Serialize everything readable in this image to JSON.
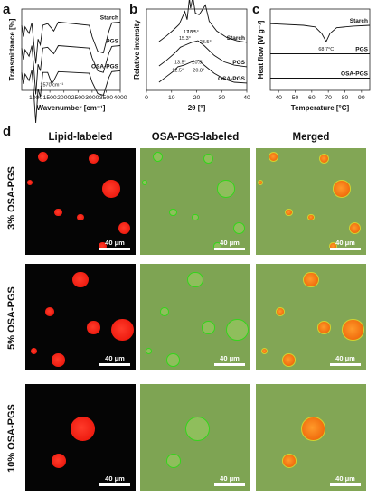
{
  "figure": {
    "panel_letters": {
      "a": "a",
      "b": "b",
      "c": "c",
      "d": "d"
    }
  },
  "chart_data": [
    {
      "panel": "a",
      "type": "line",
      "xlabel": "Wavenumber [cm⁻¹]",
      "ylabel": "Transmittance [%]",
      "xlim": [
        500,
        4000
      ],
      "xticks": [
        1000,
        1500,
        2000,
        2500,
        3000,
        3500,
        4000
      ],
      "annotations": [
        {
          "text": "1570 cm⁻¹",
          "x": 1570
        }
      ],
      "series": [
        {
          "name": "Starch",
          "offset": 0.78,
          "points": [
            [
              500,
              0.02
            ],
            [
              560,
              -0.12
            ],
            [
              620,
              0.0
            ],
            [
              760,
              -0.08
            ],
            [
              860,
              0.05
            ],
            [
              930,
              -0.2
            ],
            [
              1000,
              -0.45
            ],
            [
              1080,
              -0.15
            ],
            [
              1160,
              -0.22
            ],
            [
              1250,
              0.02
            ],
            [
              1420,
              0.04
            ],
            [
              1640,
              -0.05
            ],
            [
              1800,
              0.06
            ],
            [
              2900,
              0.02
            ],
            [
              3000,
              -0.12
            ],
            [
              3200,
              -0.3
            ],
            [
              3400,
              -0.32
            ],
            [
              3600,
              -0.05
            ],
            [
              3700,
              0.05
            ],
            [
              4000,
              0.06
            ]
          ]
        },
        {
          "name": "PGS",
          "offset": 0.5,
          "points": [
            [
              500,
              0.02
            ],
            [
              560,
              -0.12
            ],
            [
              620,
              0.0
            ],
            [
              760,
              -0.08
            ],
            [
              860,
              0.05
            ],
            [
              930,
              -0.22
            ],
            [
              1000,
              -0.55
            ],
            [
              1080,
              -0.18
            ],
            [
              1160,
              -0.26
            ],
            [
              1250,
              0.02
            ],
            [
              1420,
              0.03
            ],
            [
              1640,
              -0.05
            ],
            [
              1800,
              0.05
            ],
            [
              2900,
              0.02
            ],
            [
              3000,
              -0.1
            ],
            [
              3200,
              -0.26
            ],
            [
              3400,
              -0.28
            ],
            [
              3600,
              -0.04
            ],
            [
              3700,
              0.04
            ],
            [
              4000,
              0.05
            ]
          ]
        },
        {
          "name": "OSA-PGS",
          "offset": 0.2,
          "points": [
            [
              500,
              0.02
            ],
            [
              560,
              -0.12
            ],
            [
              620,
              0.0
            ],
            [
              760,
              -0.08
            ],
            [
              860,
              0.05
            ],
            [
              930,
              -0.24
            ],
            [
              1000,
              -0.6
            ],
            [
              1080,
              -0.18
            ],
            [
              1160,
              -0.28
            ],
            [
              1250,
              0.02
            ],
            [
              1420,
              0.02
            ],
            [
              1570,
              -0.12
            ],
            [
              1640,
              -0.08
            ],
            [
              1800,
              0.03
            ],
            [
              2900,
              0.01
            ],
            [
              3000,
              -0.1
            ],
            [
              3200,
              -0.24
            ],
            [
              3400,
              -0.26
            ],
            [
              3600,
              -0.04
            ],
            [
              3700,
              0.03
            ],
            [
              4000,
              0.04
            ]
          ]
        }
      ]
    },
    {
      "panel": "b",
      "type": "line",
      "xlabel": "2θ [°]",
      "ylabel": "Relative intensity",
      "xlim": [
        0,
        40
      ],
      "xticks": [
        0,
        10,
        20,
        30,
        40
      ],
      "series": [
        {
          "name": "Starch",
          "offset": 0.55,
          "points": [
            [
              5,
              0.05
            ],
            [
              8,
              0.12
            ],
            [
              11,
              0.2
            ],
            [
              13,
              0.26
            ],
            [
              15.3,
              0.42
            ],
            [
              16.2,
              0.32
            ],
            [
              17.1,
              0.58
            ],
            [
              17.6,
              0.46
            ],
            [
              18.5,
              0.6
            ],
            [
              19.5,
              0.4
            ],
            [
              21,
              0.38
            ],
            [
              23.5,
              0.5
            ],
            [
              25,
              0.3
            ],
            [
              28,
              0.18
            ],
            [
              32,
              0.1
            ],
            [
              36,
              0.06
            ],
            [
              40,
              0.04
            ]
          ]
        },
        {
          "name": "PGS",
          "offset": 0.25,
          "points": [
            [
              5,
              0.05
            ],
            [
              8,
              0.12
            ],
            [
              11,
              0.2
            ],
            [
              13.5,
              0.28
            ],
            [
              15,
              0.3
            ],
            [
              18,
              0.34
            ],
            [
              20.5,
              0.36
            ],
            [
              23,
              0.3
            ],
            [
              27,
              0.18
            ],
            [
              31,
              0.1
            ],
            [
              35,
              0.06
            ],
            [
              40,
              0.04
            ]
          ]
        },
        {
          "name": "OSA-PGS",
          "offset": 0.05,
          "points": [
            [
              5,
              0.05
            ],
            [
              8,
              0.12
            ],
            [
              11,
              0.19
            ],
            [
              12.5,
              0.24
            ],
            [
              15,
              0.26
            ],
            [
              18,
              0.3
            ],
            [
              20.8,
              0.32
            ],
            [
              23,
              0.26
            ],
            [
              27,
              0.16
            ],
            [
              31,
              0.09
            ],
            [
              35,
              0.05
            ],
            [
              40,
              0.04
            ]
          ]
        }
      ],
      "annotations": [
        {
          "text": "15.3°",
          "x": 15.3
        },
        {
          "text": "17.1°",
          "x": 17.1
        },
        {
          "text": "18.5°",
          "x": 18.5
        },
        {
          "text": "23.5°",
          "x": 23.5
        },
        {
          "text": "13.5°",
          "x": 13.5
        },
        {
          "text": "20.5°",
          "x": 20.5
        },
        {
          "text": "12.5°",
          "x": 12.5
        },
        {
          "text": "20.8°",
          "x": 20.8
        }
      ]
    },
    {
      "panel": "c",
      "type": "line",
      "xlabel": "Temperature [°C]",
      "ylabel": "Heat flow [W g⁻¹]",
      "xlim": [
        35,
        95
      ],
      "xticks": [
        40,
        50,
        60,
        70,
        80,
        90
      ],
      "annotations": [
        {
          "text": "68.7°C",
          "x": 68.7
        }
      ],
      "series": [
        {
          "name": "Starch",
          "offset": 0.8,
          "points": [
            [
              35,
              0.02
            ],
            [
              55,
              0.0
            ],
            [
              62,
              -0.02
            ],
            [
              66,
              -0.1
            ],
            [
              68.7,
              -0.2
            ],
            [
              71,
              -0.1
            ],
            [
              75,
              -0.03
            ],
            [
              85,
              -0.01
            ],
            [
              95,
              0.0
            ]
          ]
        },
        {
          "name": "PGS",
          "offset": 0.45,
          "points": [
            [
              35,
              0.0
            ],
            [
              95,
              0.0
            ]
          ]
        },
        {
          "name": "OSA-PGS",
          "offset": 0.15,
          "points": [
            [
              35,
              0.0
            ],
            [
              95,
              0.0
            ]
          ]
        }
      ]
    }
  ],
  "microscopy": {
    "columns": [
      "Lipid-labeled",
      "OSA-PGS-labeled",
      "Merged"
    ],
    "rows": [
      {
        "label": "3% OSA-PGS",
        "droplets": [
          [
            0.16,
            0.08,
            0.045
          ],
          [
            0.62,
            0.1,
            0.045
          ],
          [
            0.04,
            0.32,
            0.025
          ],
          [
            0.78,
            0.38,
            0.08
          ],
          [
            0.3,
            0.6,
            0.035
          ],
          [
            0.5,
            0.65,
            0.03
          ],
          [
            0.9,
            0.75,
            0.055
          ],
          [
            0.7,
            0.92,
            0.035
          ]
        ]
      },
      {
        "label": "5% OSA-PGS",
        "droplets": [
          [
            0.5,
            0.15,
            0.07
          ],
          [
            0.22,
            0.45,
            0.04
          ],
          [
            0.62,
            0.6,
            0.06
          ],
          [
            0.88,
            0.62,
            0.1
          ],
          [
            0.08,
            0.82,
            0.03
          ],
          [
            0.3,
            0.9,
            0.06
          ]
        ]
      },
      {
        "label": "10% OSA-PGS",
        "droplets": [
          [
            0.52,
            0.42,
            0.11
          ],
          [
            0.3,
            0.72,
            0.065
          ]
        ]
      }
    ],
    "scale_bar": "40 μm"
  }
}
